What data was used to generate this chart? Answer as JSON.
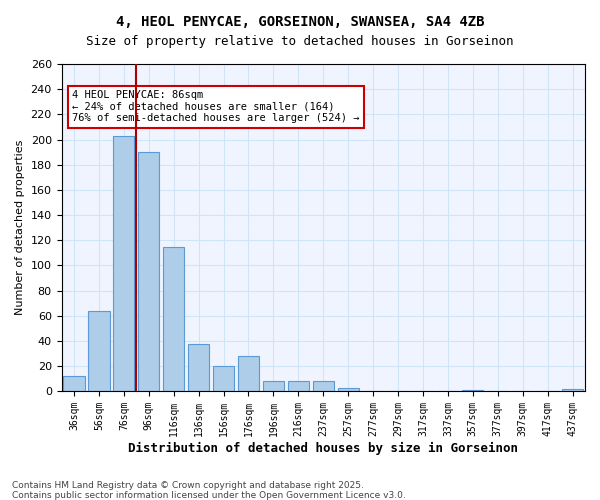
{
  "title_line1": "4, HEOL PENYCAE, GORSEINON, SWANSEA, SA4 4ZB",
  "title_line2": "Size of property relative to detached houses in Gorseinon",
  "xlabel": "Distribution of detached houses by size in Gorseinon",
  "ylabel": "Number of detached properties",
  "bins": [
    "36sqm",
    "56sqm",
    "76sqm",
    "96sqm",
    "116sqm",
    "136sqm",
    "156sqm",
    "176sqm",
    "196sqm",
    "216sqm",
    "237sqm",
    "257sqm",
    "277sqm",
    "297sqm",
    "317sqm",
    "337sqm",
    "357sqm",
    "377sqm",
    "397sqm",
    "417sqm",
    "437sqm"
  ],
  "values": [
    12,
    64,
    203,
    190,
    115,
    38,
    20,
    28,
    8,
    8,
    8,
    3,
    0,
    0,
    0,
    0,
    1,
    0,
    0,
    0,
    2
  ],
  "bar_color": "#aecde8",
  "bar_edge_color": "#5b9bd5",
  "grid_color": "#d0e4f7",
  "property_size_sqm": 86,
  "property_bin_index": 2,
  "annotation_text": "4 HEOL PENYCAE: 86sqm\n← 24% of detached houses are smaller (164)\n76% of semi-detached houses are larger (524) →",
  "annotation_box_color": "#ffffff",
  "annotation_box_edge": "#cc0000",
  "vline_color": "#aa0000",
  "footer_line1": "Contains HM Land Registry data © Crown copyright and database right 2025.",
  "footer_line2": "Contains public sector information licensed under the Open Government Licence v3.0.",
  "ylim": [
    0,
    260
  ],
  "yticks": [
    0,
    20,
    40,
    60,
    80,
    100,
    120,
    140,
    160,
    180,
    200,
    220,
    240,
    260
  ],
  "bg_color": "#ffffff",
  "plot_bg_color": "#f0f4ff"
}
